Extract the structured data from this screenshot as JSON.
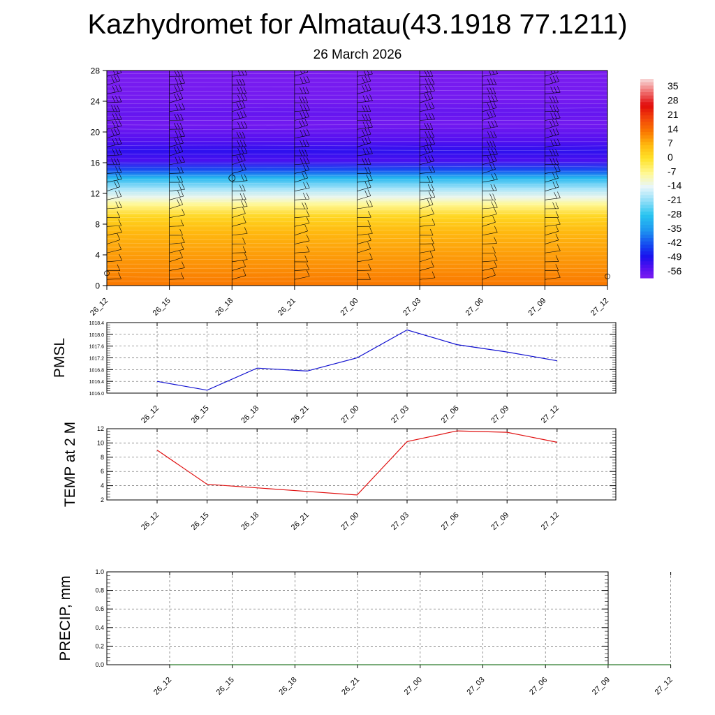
{
  "header": {
    "title": "Kazhydromet for Almatau(43.1918 77.1211)",
    "subtitle": "26 March 2026"
  },
  "chart_data": [
    {
      "type": "heatmap",
      "name": "temperature-cross-section",
      "title": "",
      "x": [
        "26_12",
        "26_15",
        "26_18",
        "26_21",
        "27_00",
        "27_03",
        "27_06",
        "27_09",
        "27_12"
      ],
      "y_ticks": [
        0,
        4,
        8,
        12,
        16,
        20,
        24,
        28
      ],
      "ylim": [
        0,
        28
      ],
      "colorbar_ticks": [
        "35",
        "28",
        "21",
        "14",
        "7",
        "0",
        "-7",
        "-14",
        "-21",
        "-28",
        "-35",
        "-42",
        "-49",
        "-56"
      ],
      "colorbar_range": [
        -63,
        42
      ],
      "profile": [
        {
          "level": 0,
          "value": 14
        },
        {
          "level": 2,
          "value": 12
        },
        {
          "level": 4,
          "value": 10
        },
        {
          "level": 7,
          "value": 7
        },
        {
          "level": 9,
          "value": 2
        },
        {
          "level": 10.6,
          "value": -8
        },
        {
          "level": 11.5,
          "value": -14
        },
        {
          "level": 12.5,
          "value": -20
        },
        {
          "level": 14,
          "value": -32
        },
        {
          "level": 15,
          "value": -45
        },
        {
          "level": 16.3,
          "value": -57
        },
        {
          "level": 17.5,
          "value": -54
        },
        {
          "level": 19,
          "value": -58
        },
        {
          "level": 21,
          "value": -62
        },
        {
          "level": 22.5,
          "value": -60
        },
        {
          "level": 24,
          "value": -62
        },
        {
          "level": 28,
          "value": -63
        }
      ]
    },
    {
      "type": "line",
      "name": "pmsl",
      "ylabel": "PMSL",
      "categories": [
        "26_12",
        "26_15",
        "26_18",
        "26_21",
        "27_00",
        "27_03",
        "27_06",
        "27_09",
        "27_12"
      ],
      "values": [
        1016.4,
        1016.1,
        1016.85,
        1016.75,
        1017.2,
        1018.15,
        1017.65,
        1017.4,
        1017.1
      ],
      "ylim": [
        1016.0,
        1018.4
      ],
      "yticks": [
        "1016.0",
        "1016.4",
        "1016.8",
        "1017.2",
        "1017.6",
        "1018.0",
        "1018.4"
      ],
      "color": "#1010d0"
    },
    {
      "type": "line",
      "name": "temp-2m",
      "ylabel": "TEMP at 2 M",
      "categories": [
        "26_12",
        "26_15",
        "26_18",
        "26_21",
        "27_00",
        "27_03",
        "27_06",
        "27_09",
        "27_12"
      ],
      "values": [
        9.0,
        4.2,
        3.7,
        3.2,
        2.7,
        10.2,
        11.7,
        11.5,
        10.1
      ],
      "ylim": [
        2,
        12
      ],
      "yticks": [
        "2",
        "4",
        "6",
        "8",
        "10",
        "12"
      ],
      "color": "#e01010"
    },
    {
      "type": "line",
      "name": "precip",
      "ylabel": "PRECIP, mm",
      "categories": [
        "26_12",
        "26_15",
        "26_18",
        "26_21",
        "27_00",
        "27_03",
        "27_06",
        "27_09",
        "27_12"
      ],
      "values": [
        0,
        0,
        0,
        0,
        0,
        0,
        0,
        0,
        0
      ],
      "ylim": [
        0,
        1
      ],
      "yticks": [
        "0.0",
        "0.2",
        "0.4",
        "0.6",
        "0.8",
        "1.0"
      ],
      "color": "#2a7a2a"
    }
  ]
}
